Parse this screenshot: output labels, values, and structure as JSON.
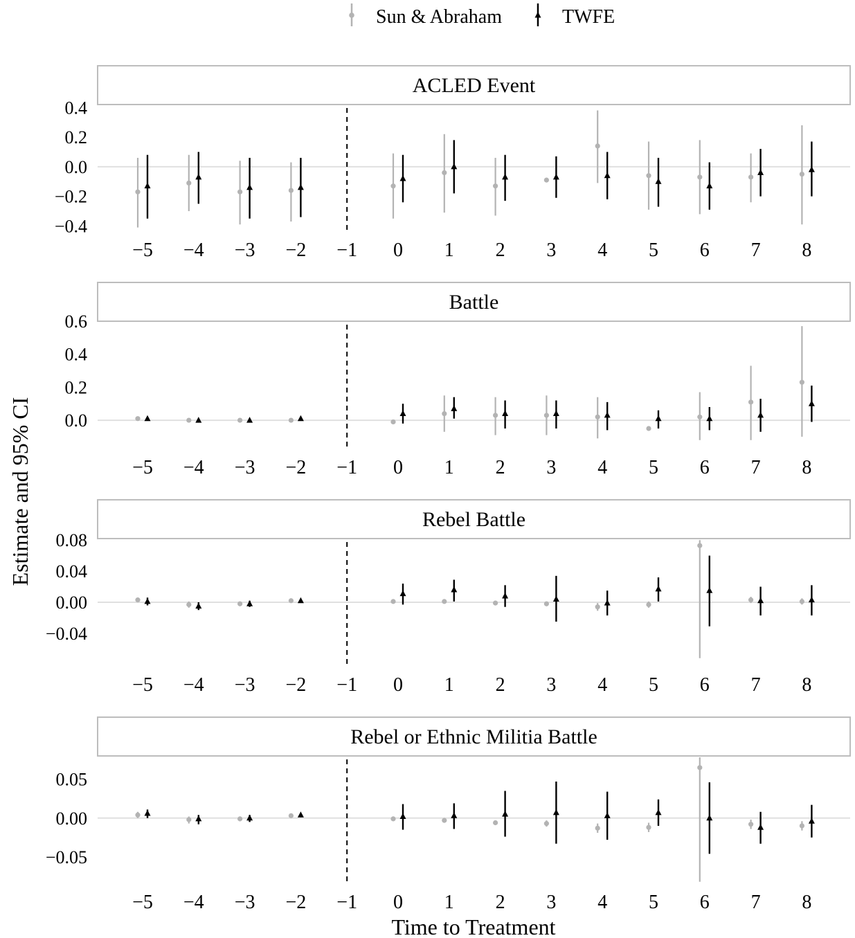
{
  "chart_data": {
    "type": "scatter",
    "legend": {
      "position": "top",
      "entries": [
        {
          "name": "Sun & Abraham",
          "color": "#b3b3b3",
          "marker": "circle"
        },
        {
          "name": "TWFE",
          "color": "#000000",
          "marker": "triangle"
        }
      ]
    },
    "xlabel": "Time to Treatment",
    "ylabel": "Estimate and 95% CI",
    "x_ticks": [
      -5,
      -4,
      -3,
      -2,
      -1,
      0,
      1,
      2,
      3,
      4,
      5,
      6,
      7,
      8
    ],
    "x_tick_labels": [
      "−5",
      "−4",
      "−3",
      "−2",
      "−1",
      "0",
      "1",
      "2",
      "3",
      "4",
      "5",
      "6",
      "7",
      "8"
    ],
    "reference_line_x": -1,
    "grid": false,
    "facets": [
      {
        "title": "ACLED Event",
        "ylim": [
          -0.44,
          0.42
        ],
        "y_ticks": [
          -0.4,
          -0.2,
          0.0,
          0.2,
          0.4
        ],
        "y_tick_labels": [
          "−0.4",
          "−0.2",
          "0.0",
          "0.2",
          "0.4"
        ],
        "series": [
          {
            "name": "Sun & Abraham",
            "points": [
              {
                "x": -5,
                "y": -0.17,
                "lo": -0.41,
                "hi": 0.06
              },
              {
                "x": -4,
                "y": -0.11,
                "lo": -0.3,
                "hi": 0.08
              },
              {
                "x": -3,
                "y": -0.17,
                "lo": -0.39,
                "hi": 0.04
              },
              {
                "x": -2,
                "y": -0.16,
                "lo": -0.37,
                "hi": 0.03
              },
              {
                "x": 0,
                "y": -0.13,
                "lo": -0.35,
                "hi": 0.09
              },
              {
                "x": 1,
                "y": -0.04,
                "lo": -0.31,
                "hi": 0.22
              },
              {
                "x": 2,
                "y": -0.13,
                "lo": -0.33,
                "hi": 0.06
              },
              {
                "x": 3,
                "y": -0.09,
                "lo": -0.09,
                "hi": -0.09
              },
              {
                "x": 4,
                "y": 0.14,
                "lo": -0.11,
                "hi": 0.38
              },
              {
                "x": 5,
                "y": -0.06,
                "lo": -0.29,
                "hi": 0.17
              },
              {
                "x": 6,
                "y": -0.07,
                "lo": -0.32,
                "hi": 0.18
              },
              {
                "x": 7,
                "y": -0.07,
                "lo": -0.24,
                "hi": 0.09
              },
              {
                "x": 8,
                "y": -0.05,
                "lo": -0.39,
                "hi": 0.28
              }
            ]
          },
          {
            "name": "TWFE",
            "points": [
              {
                "x": -5,
                "y": -0.13,
                "lo": -0.35,
                "hi": 0.08
              },
              {
                "x": -4,
                "y": -0.07,
                "lo": -0.25,
                "hi": 0.1
              },
              {
                "x": -3,
                "y": -0.14,
                "lo": -0.35,
                "hi": 0.06
              },
              {
                "x": -2,
                "y": -0.14,
                "lo": -0.34,
                "hi": 0.06
              },
              {
                "x": 0,
                "y": -0.08,
                "lo": -0.24,
                "hi": 0.08
              },
              {
                "x": 1,
                "y": 0.0,
                "lo": -0.18,
                "hi": 0.18
              },
              {
                "x": 2,
                "y": -0.07,
                "lo": -0.23,
                "hi": 0.08
              },
              {
                "x": 3,
                "y": -0.07,
                "lo": -0.21,
                "hi": 0.07
              },
              {
                "x": 4,
                "y": -0.06,
                "lo": -0.22,
                "hi": 0.1
              },
              {
                "x": 5,
                "y": -0.1,
                "lo": -0.27,
                "hi": 0.06
              },
              {
                "x": 6,
                "y": -0.13,
                "lo": -0.29,
                "hi": 0.03
              },
              {
                "x": 7,
                "y": -0.04,
                "lo": -0.2,
                "hi": 0.12
              },
              {
                "x": 8,
                "y": -0.02,
                "lo": -0.2,
                "hi": 0.17
              }
            ]
          }
        ]
      },
      {
        "title": "Battle",
        "ylim": [
          -0.18,
          0.6
        ],
        "y_ticks": [
          0.0,
          0.2,
          0.4,
          0.6
        ],
        "y_tick_labels": [
          "0.0",
          "0.2",
          "0.4",
          "0.6"
        ],
        "series": [
          {
            "name": "Sun & Abraham",
            "points": [
              {
                "x": -5,
                "y": 0.01,
                "lo": 0.01,
                "hi": 0.01
              },
              {
                "x": -4,
                "y": 0.0,
                "lo": 0.0,
                "hi": 0.0
              },
              {
                "x": -3,
                "y": 0.0,
                "lo": 0.0,
                "hi": 0.0
              },
              {
                "x": -2,
                "y": 0.0,
                "lo": 0.0,
                "hi": 0.0
              },
              {
                "x": 0,
                "y": -0.01,
                "lo": -0.01,
                "hi": -0.01
              },
              {
                "x": 1,
                "y": 0.04,
                "lo": -0.07,
                "hi": 0.15
              },
              {
                "x": 2,
                "y": 0.03,
                "lo": -0.09,
                "hi": 0.14
              },
              {
                "x": 3,
                "y": 0.03,
                "lo": -0.09,
                "hi": 0.15
              },
              {
                "x": 4,
                "y": 0.02,
                "lo": -0.11,
                "hi": 0.14
              },
              {
                "x": 5,
                "y": -0.05,
                "lo": -0.05,
                "hi": -0.05
              },
              {
                "x": 6,
                "y": 0.02,
                "lo": -0.12,
                "hi": 0.17
              },
              {
                "x": 7,
                "y": 0.11,
                "lo": -0.12,
                "hi": 0.33
              },
              {
                "x": 8,
                "y": 0.23,
                "lo": -0.1,
                "hi": 0.57
              }
            ]
          },
          {
            "name": "TWFE",
            "points": [
              {
                "x": -5,
                "y": 0.01,
                "lo": 0.0,
                "hi": 0.02
              },
              {
                "x": -4,
                "y": 0.0,
                "lo": 0.0,
                "hi": 0.01
              },
              {
                "x": -3,
                "y": 0.0,
                "lo": 0.0,
                "hi": 0.01
              },
              {
                "x": -2,
                "y": 0.01,
                "lo": 0.0,
                "hi": 0.01
              },
              {
                "x": 0,
                "y": 0.04,
                "lo": -0.02,
                "hi": 0.1
              },
              {
                "x": 1,
                "y": 0.07,
                "lo": 0.01,
                "hi": 0.14
              },
              {
                "x": 2,
                "y": 0.04,
                "lo": -0.05,
                "hi": 0.12
              },
              {
                "x": 3,
                "y": 0.04,
                "lo": -0.05,
                "hi": 0.12
              },
              {
                "x": 4,
                "y": 0.03,
                "lo": -0.06,
                "hi": 0.11
              },
              {
                "x": 5,
                "y": 0.01,
                "lo": -0.05,
                "hi": 0.06
              },
              {
                "x": 6,
                "y": 0.01,
                "lo": -0.06,
                "hi": 0.08
              },
              {
                "x": 7,
                "y": 0.03,
                "lo": -0.07,
                "hi": 0.13
              },
              {
                "x": 8,
                "y": 0.1,
                "lo": -0.01,
                "hi": 0.21
              }
            ]
          }
        ]
      },
      {
        "title": "Rebel Battle",
        "ylim": [
          -0.082,
          0.082
        ],
        "y_ticks": [
          -0.04,
          0.0,
          0.04,
          0.08
        ],
        "y_tick_labels": [
          "−0.04",
          "0.00",
          "0.04",
          "0.08"
        ],
        "series": [
          {
            "name": "Sun & Abraham",
            "points": [
              {
                "x": -5,
                "y": 0.003,
                "lo": 0.0,
                "hi": 0.006
              },
              {
                "x": -4,
                "y": -0.003,
                "lo": -0.007,
                "hi": 0.001
              },
              {
                "x": -3,
                "y": -0.002,
                "lo": -0.005,
                "hi": 0.001
              },
              {
                "x": -2,
                "y": 0.002,
                "lo": 0.001,
                "hi": 0.003
              },
              {
                "x": 0,
                "y": 0.001,
                "lo": 0.001,
                "hi": 0.001
              },
              {
                "x": 1,
                "y": 0.001,
                "lo": 0.001,
                "hi": 0.001
              },
              {
                "x": 2,
                "y": -0.001,
                "lo": -0.001,
                "hi": -0.001
              },
              {
                "x": 3,
                "y": -0.002,
                "lo": -0.005,
                "hi": 0.001
              },
              {
                "x": 4,
                "y": -0.006,
                "lo": -0.011,
                "hi": -0.001
              },
              {
                "x": 5,
                "y": -0.003,
                "lo": -0.007,
                "hi": 0.001
              },
              {
                "x": 6,
                "y": 0.073,
                "lo": -0.072,
                "hi": 0.08
              },
              {
                "x": 7,
                "y": 0.003,
                "lo": -0.001,
                "hi": 0.007
              },
              {
                "x": 8,
                "y": 0.001,
                "lo": -0.003,
                "hi": 0.005
              }
            ]
          },
          {
            "name": "TWFE",
            "points": [
              {
                "x": -5,
                "y": 0.001,
                "lo": -0.004,
                "hi": 0.006
              },
              {
                "x": -4,
                "y": -0.005,
                "lo": -0.01,
                "hi": 0.0
              },
              {
                "x": -3,
                "y": -0.002,
                "lo": -0.006,
                "hi": 0.002
              },
              {
                "x": -2,
                "y": 0.002,
                "lo": 0.0,
                "hi": 0.004
              },
              {
                "x": 0,
                "y": 0.011,
                "lo": -0.003,
                "hi": 0.024
              },
              {
                "x": 1,
                "y": 0.016,
                "lo": 0.001,
                "hi": 0.029
              },
              {
                "x": 2,
                "y": 0.008,
                "lo": -0.006,
                "hi": 0.022
              },
              {
                "x": 3,
                "y": 0.004,
                "lo": -0.025,
                "hi": 0.034
              },
              {
                "x": 4,
                "y": -0.001,
                "lo": -0.017,
                "hi": 0.015
              },
              {
                "x": 5,
                "y": 0.017,
                "lo": 0.001,
                "hi": 0.032
              },
              {
                "x": 6,
                "y": 0.015,
                "lo": -0.031,
                "hi": 0.06
              },
              {
                "x": 7,
                "y": 0.002,
                "lo": -0.017,
                "hi": 0.02
              },
              {
                "x": 8,
                "y": 0.003,
                "lo": -0.017,
                "hi": 0.022
              }
            ]
          }
        ]
      },
      {
        "title": "Rebel or Ethnic Militia Battle",
        "ylim": [
          -0.084,
          0.08
        ],
        "y_ticks": [
          -0.05,
          0.0,
          0.05
        ],
        "y_tick_labels": [
          "−0.05",
          "0.00",
          "0.05"
        ],
        "series": [
          {
            "name": "Sun & Abraham",
            "points": [
              {
                "x": -5,
                "y": 0.004,
                "lo": 0.0,
                "hi": 0.008
              },
              {
                "x": -4,
                "y": -0.002,
                "lo": -0.007,
                "hi": 0.002
              },
              {
                "x": -3,
                "y": -0.001,
                "lo": -0.004,
                "hi": 0.002
              },
              {
                "x": -2,
                "y": 0.003,
                "lo": 0.001,
                "hi": 0.004
              },
              {
                "x": 0,
                "y": -0.001,
                "lo": -0.001,
                "hi": -0.001
              },
              {
                "x": 1,
                "y": -0.003,
                "lo": -0.006,
                "hi": 0.0
              },
              {
                "x": 2,
                "y": -0.006,
                "lo": -0.006,
                "hi": -0.006
              },
              {
                "x": 3,
                "y": -0.007,
                "lo": -0.011,
                "hi": -0.003
              },
              {
                "x": 4,
                "y": -0.013,
                "lo": -0.019,
                "hi": -0.007
              },
              {
                "x": 5,
                "y": -0.012,
                "lo": -0.018,
                "hi": -0.006
              },
              {
                "x": 6,
                "y": 0.065,
                "lo": -0.082,
                "hi": 0.08
              },
              {
                "x": 7,
                "y": -0.008,
                "lo": -0.014,
                "hi": -0.002
              },
              {
                "x": 8,
                "y": -0.01,
                "lo": -0.016,
                "hi": -0.004
              }
            ]
          },
          {
            "name": "TWFE",
            "points": [
              {
                "x": -5,
                "y": 0.006,
                "lo": 0.0,
                "hi": 0.011
              },
              {
                "x": -4,
                "y": -0.001,
                "lo": -0.008,
                "hi": 0.004
              },
              {
                "x": -3,
                "y": 0.0,
                "lo": -0.005,
                "hi": 0.004
              },
              {
                "x": -2,
                "y": 0.004,
                "lo": 0.001,
                "hi": 0.006
              },
              {
                "x": 0,
                "y": 0.002,
                "lo": -0.015,
                "hi": 0.018
              },
              {
                "x": 1,
                "y": 0.003,
                "lo": -0.014,
                "hi": 0.019
              },
              {
                "x": 2,
                "y": 0.005,
                "lo": -0.024,
                "hi": 0.035
              },
              {
                "x": 3,
                "y": 0.007,
                "lo": -0.033,
                "hi": 0.047
              },
              {
                "x": 4,
                "y": 0.003,
                "lo": -0.028,
                "hi": 0.034
              },
              {
                "x": 5,
                "y": 0.007,
                "lo": -0.01,
                "hi": 0.024
              },
              {
                "x": 6,
                "y": 0.0,
                "lo": -0.046,
                "hi": 0.046
              },
              {
                "x": 7,
                "y": -0.012,
                "lo": -0.033,
                "hi": 0.008
              },
              {
                "x": 8,
                "y": -0.004,
                "lo": -0.025,
                "hi": 0.017
              }
            ]
          }
        ]
      }
    ]
  }
}
